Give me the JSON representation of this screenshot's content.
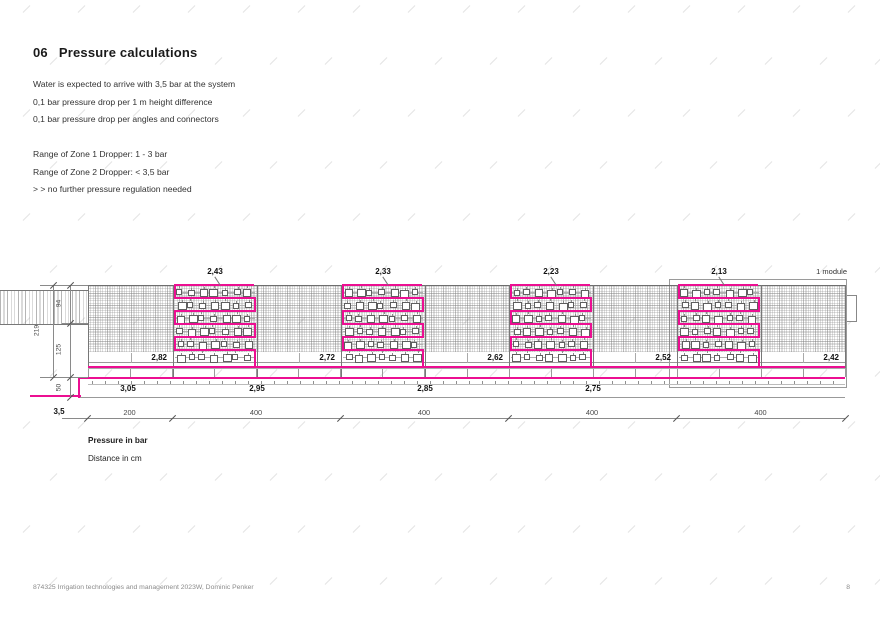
{
  "title": {
    "number": "06",
    "text": "Pressure calculations"
  },
  "intro_lines": [
    "Water is expected to arrive with 3,5 bar at the system",
    "0,1 bar pressure drop per 1 m height difference",
    "0,1 bar pressure drop per angles and connectors"
  ],
  "notes_lines": [
    "Range of Zone 1 Dropper: 1 - 3 bar",
    "Range of Zone 2 Dropper: < 3,5 bar",
    "> > no further pressure regulation needed"
  ],
  "legend": {
    "line1": "Pressure in bar",
    "line2": "Distance in cm"
  },
  "footer": {
    "left": "874325 Irrigation technologies and management 2023W, Dominic Penker",
    "page": "8"
  },
  "diagram": {
    "module_label": "1 module",
    "supply_pressure": "3,5",
    "top_module_pressures": [
      "2,43",
      "2,33",
      "2,23",
      "2,13"
    ],
    "wall_base_pressures": [
      "2,82",
      "2,72",
      "2,62",
      "2,52",
      "2,42"
    ],
    "main_pipe_pressures": [
      "3,05",
      "2,95",
      "2,85",
      "2,75"
    ],
    "bottom_dimensions": [
      "200",
      "400",
      "400",
      "400",
      "400"
    ],
    "height_dimensions": {
      "total": "219",
      "upper": "94",
      "middle": "125",
      "lower": "50"
    },
    "colors": {
      "pipe_magenta": "#ec0f92"
    }
  }
}
